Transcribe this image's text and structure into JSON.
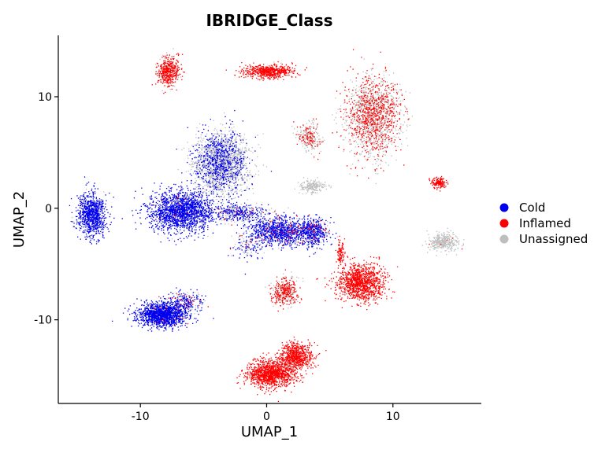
{
  "chart_data": {
    "type": "scatter",
    "title": "IBRIDGE_Class",
    "xlabel": "UMAP_1",
    "ylabel": "UMAP_2",
    "xlim": [
      -16.5,
      17
    ],
    "ylim": [
      -17.5,
      15.5
    ],
    "xticks": [
      -10,
      0,
      10
    ],
    "yticks": [
      -10,
      0,
      10
    ],
    "grid": false,
    "legend_position": "right",
    "series": [
      {
        "name": "Cold",
        "color": "#0000ee"
      },
      {
        "name": "Inflamed",
        "color": "#ff0000"
      },
      {
        "name": "Unassigned",
        "color": "#bebebe"
      }
    ],
    "clusters": [
      {
        "cx": -13.9,
        "cy": -0.5,
        "sx": 0.7,
        "sy": 1.2,
        "n": 900,
        "mix": [
          0.95,
          0,
          0.05
        ]
      },
      {
        "cx": -7.8,
        "cy": 12.3,
        "sx": 0.55,
        "sy": 0.8,
        "n": 500,
        "mix": [
          0,
          0.82,
          0.18
        ]
      },
      {
        "cx": 0.1,
        "cy": 12.3,
        "sx": 1.3,
        "sy": 0.35,
        "n": 650,
        "mix": [
          0,
          0.96,
          0.04
        ]
      },
      {
        "cx": 8.4,
        "cy": 8.3,
        "sx": 1.3,
        "sy": 2.2,
        "n": 1700,
        "mix": [
          0,
          0.45,
          0.55
        ]
      },
      {
        "cx": 3.3,
        "cy": 6.5,
        "sx": 0.6,
        "sy": 0.8,
        "n": 280,
        "mix": [
          0,
          0.35,
          0.65
        ]
      },
      {
        "cx": -3.6,
        "cy": 4.1,
        "sx": 1.3,
        "sy": 1.7,
        "n": 2100,
        "mix": [
          0.35,
          0,
          0.65
        ]
      },
      {
        "cx": 3.6,
        "cy": 2.0,
        "sx": 0.6,
        "sy": 0.35,
        "n": 200,
        "mix": [
          0,
          0,
          1
        ]
      },
      {
        "cx": 13.6,
        "cy": 2.3,
        "sx": 0.35,
        "sy": 0.3,
        "n": 150,
        "mix": [
          0,
          1,
          0
        ]
      },
      {
        "cx": -6.8,
        "cy": -0.2,
        "sx": 1.6,
        "sy": 1.1,
        "n": 1800,
        "mix": [
          0.96,
          0.01,
          0.03
        ]
      },
      {
        "cx": -2.3,
        "cy": -0.4,
        "sx": 1.3,
        "sy": 0.5,
        "n": 450,
        "mix": [
          0.5,
          0.05,
          0.45
        ]
      },
      {
        "cx": 0.9,
        "cy": -2.0,
        "sx": 1.4,
        "sy": 0.8,
        "n": 1000,
        "mix": [
          0.85,
          0.05,
          0.1
        ]
      },
      {
        "cx": 3.6,
        "cy": -2.1,
        "sx": 0.8,
        "sy": 0.8,
        "n": 550,
        "mix": [
          0.75,
          0.05,
          0.2
        ]
      },
      {
        "cx": -1.5,
        "cy": -3.3,
        "sx": 0.9,
        "sy": 0.9,
        "n": 150,
        "mix": [
          0.5,
          0.05,
          0.45
        ]
      },
      {
        "cx": 14.0,
        "cy": -3.0,
        "sx": 0.75,
        "sy": 0.5,
        "n": 350,
        "mix": [
          0,
          0.02,
          0.98
        ]
      },
      {
        "cx": 7.4,
        "cy": -6.6,
        "sx": 1.2,
        "sy": 1.0,
        "n": 1200,
        "mix": [
          0,
          1,
          0
        ]
      },
      {
        "cx": 5.8,
        "cy": -4.0,
        "sx": 0.2,
        "sy": 0.8,
        "n": 100,
        "mix": [
          0,
          1,
          0
        ]
      },
      {
        "cx": 1.4,
        "cy": -7.5,
        "sx": 0.65,
        "sy": 0.75,
        "n": 450,
        "mix": [
          0,
          0.55,
          0.45
        ]
      },
      {
        "cx": -8.3,
        "cy": -9.5,
        "sx": 1.2,
        "sy": 0.65,
        "n": 1500,
        "mix": [
          0.98,
          0.01,
          0.01
        ]
      },
      {
        "cx": -6.6,
        "cy": -8.4,
        "sx": 0.8,
        "sy": 0.6,
        "n": 300,
        "mix": [
          0.65,
          0.1,
          0.25
        ]
      },
      {
        "cx": 0.3,
        "cy": -14.8,
        "sx": 1.2,
        "sy": 0.75,
        "n": 1300,
        "mix": [
          0,
          1,
          0
        ]
      },
      {
        "cx": 2.3,
        "cy": -13.2,
        "sx": 0.8,
        "sy": 0.7,
        "n": 700,
        "mix": [
          0,
          1,
          0
        ]
      }
    ]
  }
}
